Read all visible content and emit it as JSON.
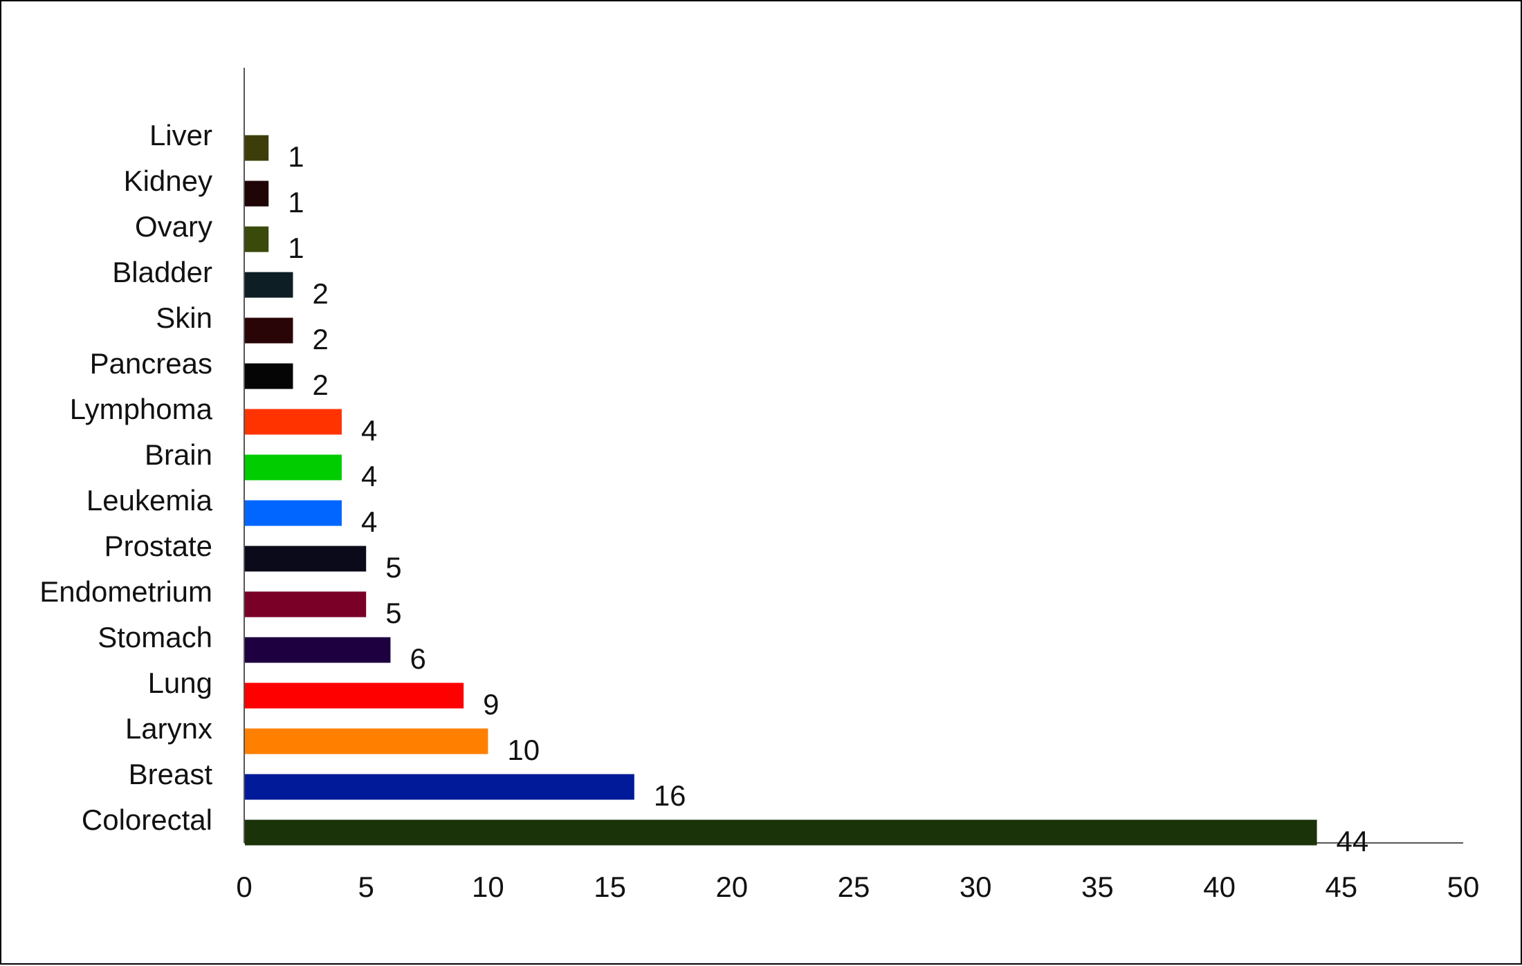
{
  "chart_data": {
    "type": "bar",
    "orientation": "horizontal",
    "title": "",
    "xlabel": "",
    "ylabel": "",
    "xlim": [
      0,
      50
    ],
    "x_ticks": [
      0,
      5,
      10,
      15,
      20,
      25,
      30,
      35,
      40,
      45,
      50
    ],
    "grid": false,
    "legend": "none",
    "categories": [
      "Liver",
      "Kidney",
      "Ovary",
      "Bladder",
      "Skin",
      "Pancreas",
      "Lymphoma",
      "Brain",
      "Leukemia",
      "Prostate",
      "Endometrium",
      "Stomach",
      "Lung",
      "Larynx",
      "Breast",
      "Colorectal"
    ],
    "values": [
      1,
      1,
      1,
      2,
      2,
      2,
      4,
      4,
      4,
      5,
      5,
      6,
      9,
      10,
      16,
      44
    ],
    "colors": [
      "#3d3d0a",
      "#1f0505",
      "#3a4a0a",
      "#0d1f24",
      "#2a0508",
      "#050505",
      "#ff3300",
      "#00cc00",
      "#0066ff",
      "#0a0a1a",
      "#7a0028",
      "#1e0040",
      "#ff0000",
      "#ff8000",
      "#001a99",
      "#1a3309"
    ]
  }
}
